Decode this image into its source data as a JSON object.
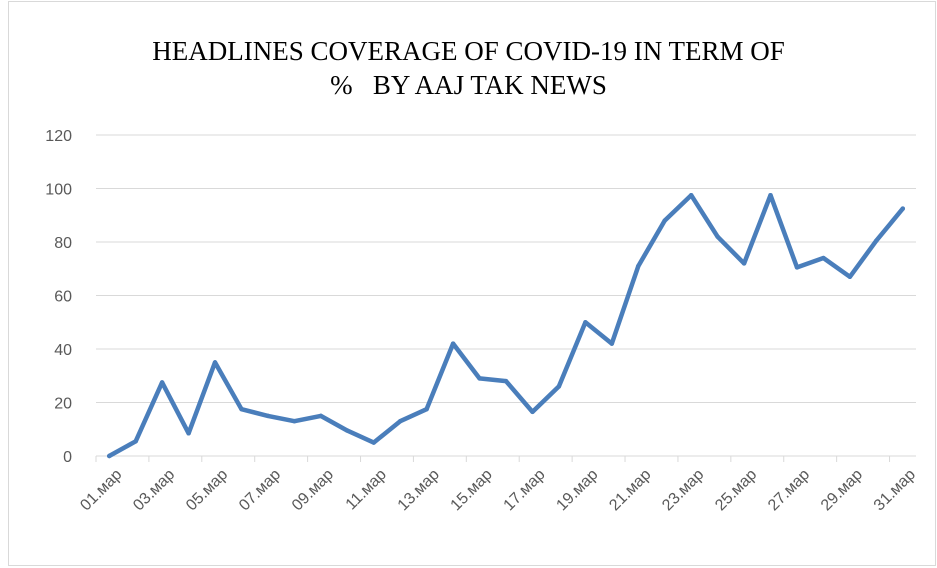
{
  "chart_data": {
    "type": "line",
    "title_lines": [
      "HEADLINES COVERAGE OF COVID-19 IN TERM OF",
      "%   BY AAJ TAK NEWS"
    ],
    "xlabel": "",
    "ylabel": "",
    "ylim": [
      0,
      120
    ],
    "yticks": [
      0,
      20,
      40,
      60,
      80,
      100,
      120
    ],
    "grid": true,
    "legend": "none",
    "line_color": "#4a7ebb",
    "categories": [
      "01.мар",
      "02.мар",
      "03.мар",
      "04.мар",
      "05.мар",
      "06.мар",
      "07.мар",
      "08.мар",
      "09.мар",
      "10.мар",
      "11.мар",
      "12.мар",
      "13.мар",
      "14.мар",
      "15.мар",
      "16.мар",
      "17.мар",
      "18.мар",
      "19.мар",
      "20.мар",
      "21.мар",
      "22.мар",
      "23.мар",
      "24.мар",
      "25.мар",
      "26.мар",
      "27.мар",
      "28.мар",
      "29.мар",
      "30.мар",
      "31.мар"
    ],
    "tick_labels": [
      "01.мар",
      "03.мар",
      "05.мар",
      "07.мар",
      "09.мар",
      "11.мар",
      "13.мар",
      "15.мар",
      "17.мар",
      "19.мар",
      "21.мар",
      "23.мар",
      "25.мар",
      "27.мар",
      "29.мар",
      "31.мар"
    ],
    "values": [
      0,
      5.5,
      27.5,
      8.5,
      35,
      17.5,
      15,
      13,
      15,
      9.5,
      5,
      13,
      17.5,
      42,
      29,
      28,
      16.5,
      26,
      50,
      42,
      71,
      88,
      97.5,
      82,
      72,
      97.5,
      70.5,
      74,
      67,
      80.5,
      92.5
    ]
  }
}
